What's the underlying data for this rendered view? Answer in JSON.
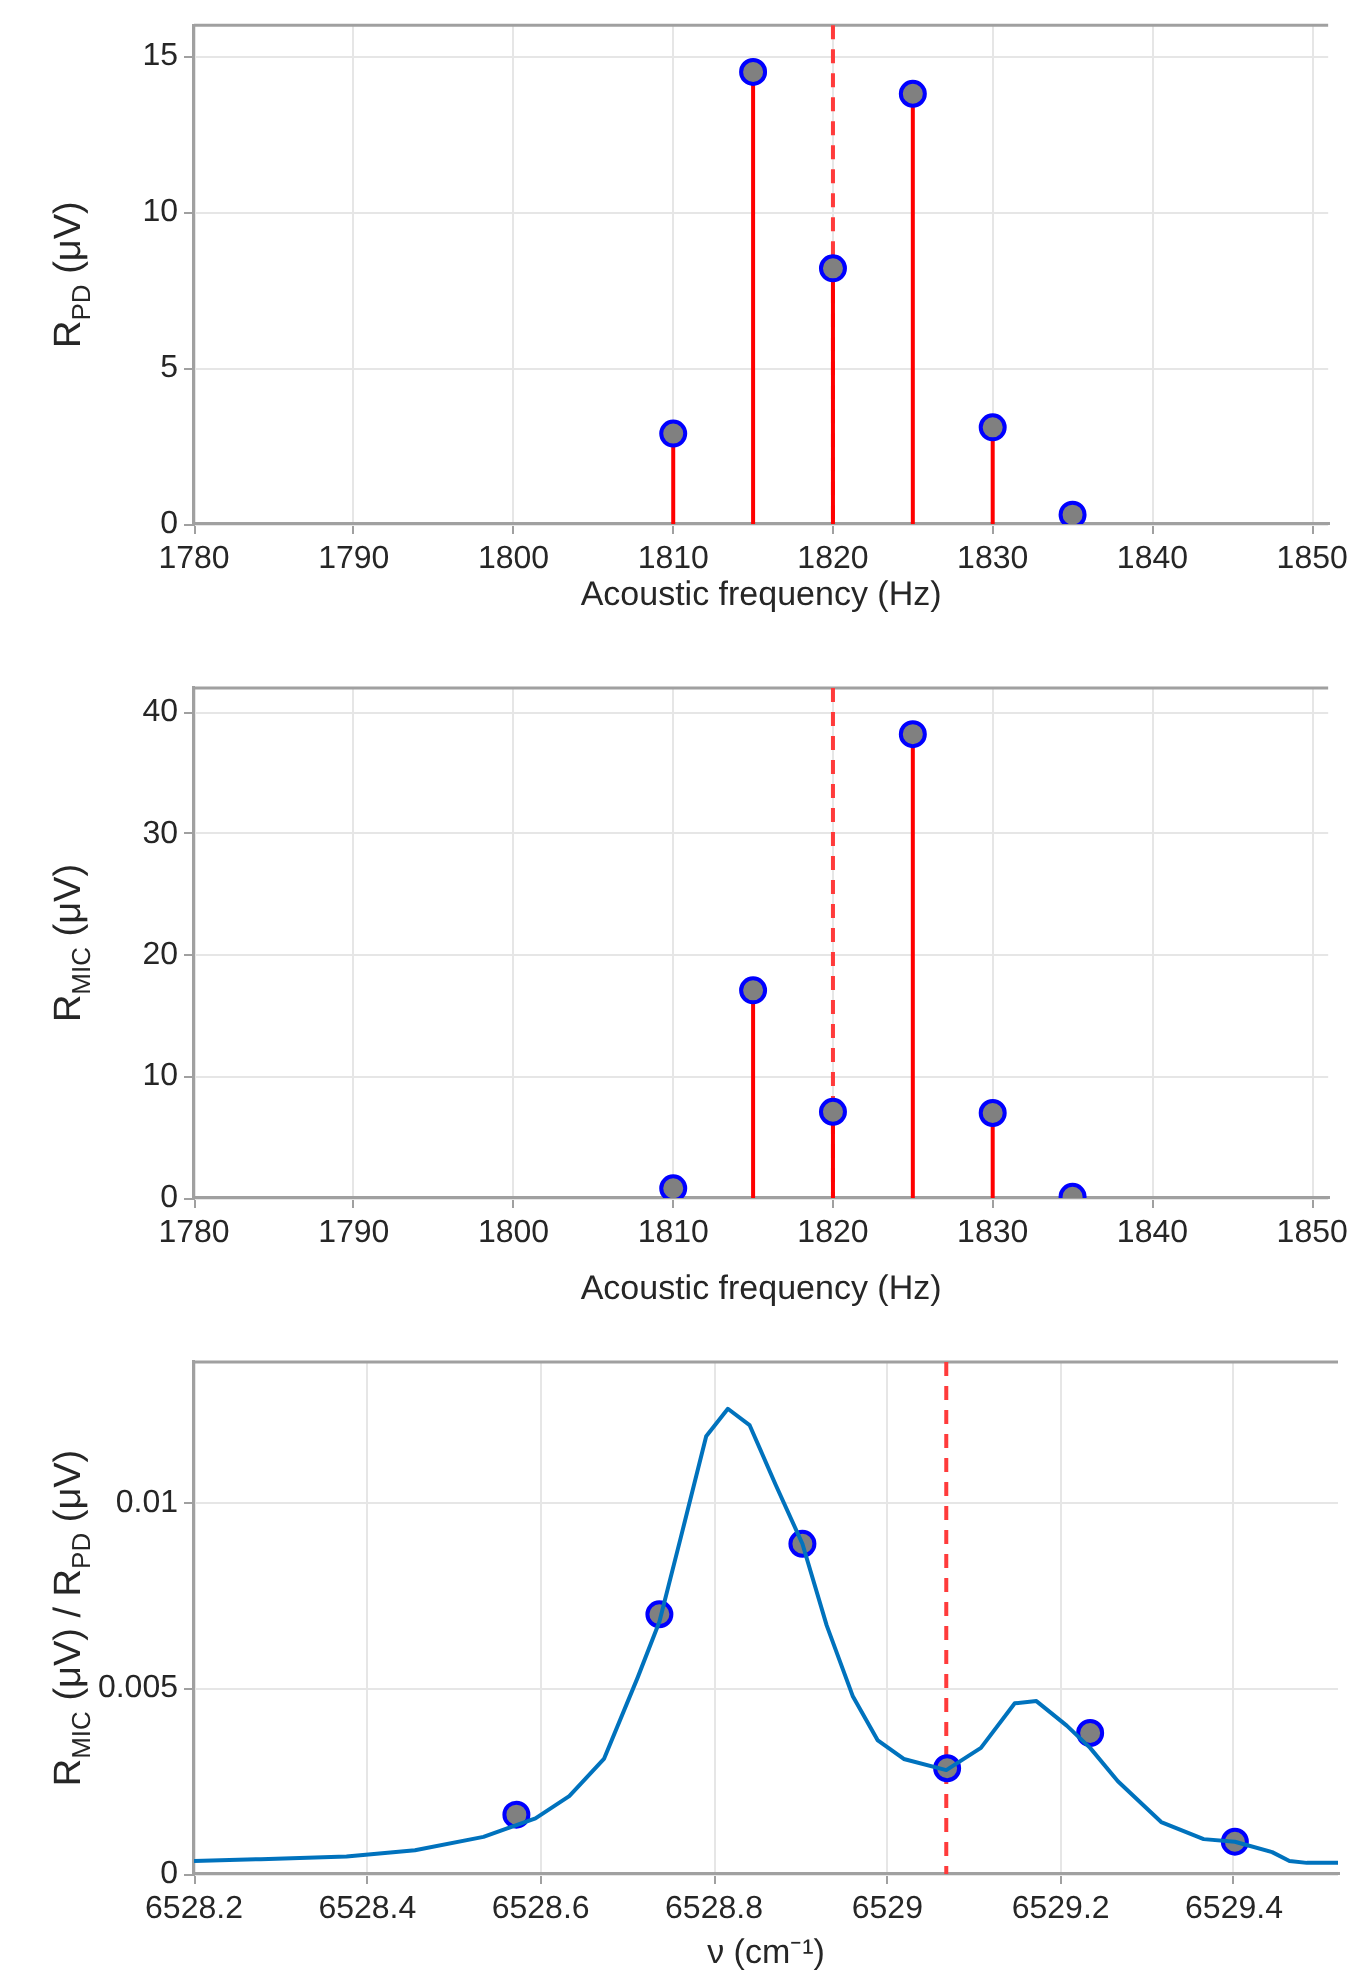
{
  "chart_data": [
    {
      "type": "lollipop",
      "xlabel": "Acoustic frequency (Hz)",
      "ylabel": "R$_{PD}$ (μV)",
      "x": [
        1810,
        1815,
        1820,
        1825,
        1830,
        1835
      ],
      "values": [
        2.9,
        14.5,
        8.2,
        13.8,
        3.1,
        0.3
      ],
      "color": "#808080",
      "marker": "circle",
      "xlim": [
        1780,
        1851
      ],
      "xticks": [
        1780,
        1790,
        1800,
        1810,
        1820,
        1830,
        1840,
        1850
      ],
      "ylim": [
        0,
        16
      ],
      "yticks": [
        0,
        5,
        10,
        15
      ],
      "grid": true,
      "legend": false,
      "ref_lines": [
        {
          "axis": "x",
          "value": 1820,
          "color": "#ff3b3b",
          "line_style": "dashed"
        }
      ]
    },
    {
      "type": "lollipop",
      "xlabel": "Acoustic frequency (Hz)",
      "ylabel": "R$_{MIC}$ (μV)",
      "x": [
        1810,
        1815,
        1820,
        1825,
        1830,
        1835
      ],
      "values": [
        0.8,
        17.1,
        7.1,
        38.2,
        7.0,
        0.1
      ],
      "color": "#808080",
      "marker": "circle",
      "xlim": [
        1780,
        1851
      ],
      "xticks": [
        1780,
        1790,
        1800,
        1810,
        1820,
        1830,
        1840,
        1850
      ],
      "ylim": [
        0,
        42
      ],
      "yticks": [
        0,
        10,
        20,
        30,
        40
      ],
      "grid": true,
      "legend": false,
      "ref_lines": [
        {
          "axis": "x",
          "value": 1820,
          "color": "#ff3b3b",
          "line_style": "dashed"
        }
      ]
    },
    {
      "type": "line",
      "xlabel": "ν (cm⁻¹)",
      "ylabel": "R$_{MIC}$ (μV) / R$_{PD}$ (μV)",
      "marker": "circle",
      "xlim": [
        6528.2,
        6529.52
      ],
      "xticks": [
        6528.2,
        6528.4,
        6528.6,
        6528.8,
        6529,
        6529.2,
        6529.4
      ],
      "ylim": [
        0,
        0.0138
      ],
      "yticks": [
        0,
        0.005,
        0.01
      ],
      "grid": true,
      "legend": false,
      "series": [
        {
          "type": "line",
          "color": "#0072bd",
          "marker": "none",
          "x": [
            6528.2,
            6528.277,
            6528.376,
            6528.455,
            6528.534,
            6528.594,
            6528.633,
            6528.673,
            6528.712,
            6528.737,
            6528.762,
            6528.791,
            6528.816,
            6528.841,
            6528.871,
            6528.902,
            6528.93,
            6528.96,
            6528.989,
            6529.019,
            6529.068,
            6529.108,
            6529.147,
            6529.172,
            6529.207,
            6529.234,
            6529.266,
            6529.316,
            6529.365,
            6529.401,
            6529.444,
            6529.464,
            6529.484,
            6529.52
          ],
          "values": [
            0.00035,
            0.0004,
            0.00047,
            0.00064,
            0.001,
            0.0015,
            0.0021,
            0.0031,
            0.0053,
            0.0068,
            0.0091,
            0.0118,
            0.01254,
            0.0121,
            0.0105,
            0.0089,
            0.0067,
            0.0048,
            0.0036,
            0.0031,
            0.0028,
            0.0034,
            0.0046,
            0.00466,
            0.004,
            0.0034,
            0.0025,
            0.0014,
            0.00094,
            0.00087,
            0.00059,
            0.00035,
            0.0003,
            0.0003
          ]
        },
        {
          "type": "scatter",
          "color": "#808080",
          "x": [
            6528.572,
            6528.737,
            6528.902,
            6529.069,
            6529.234,
            6529.401
          ],
          "values": [
            0.0016,
            0.007,
            0.0089,
            0.00285,
            0.0038,
            0.00087
          ]
        }
      ],
      "ref_lines": [
        {
          "axis": "x",
          "value": 6529.068,
          "color": "#ff3b3b",
          "line_style": "dashed"
        }
      ]
    }
  ]
}
